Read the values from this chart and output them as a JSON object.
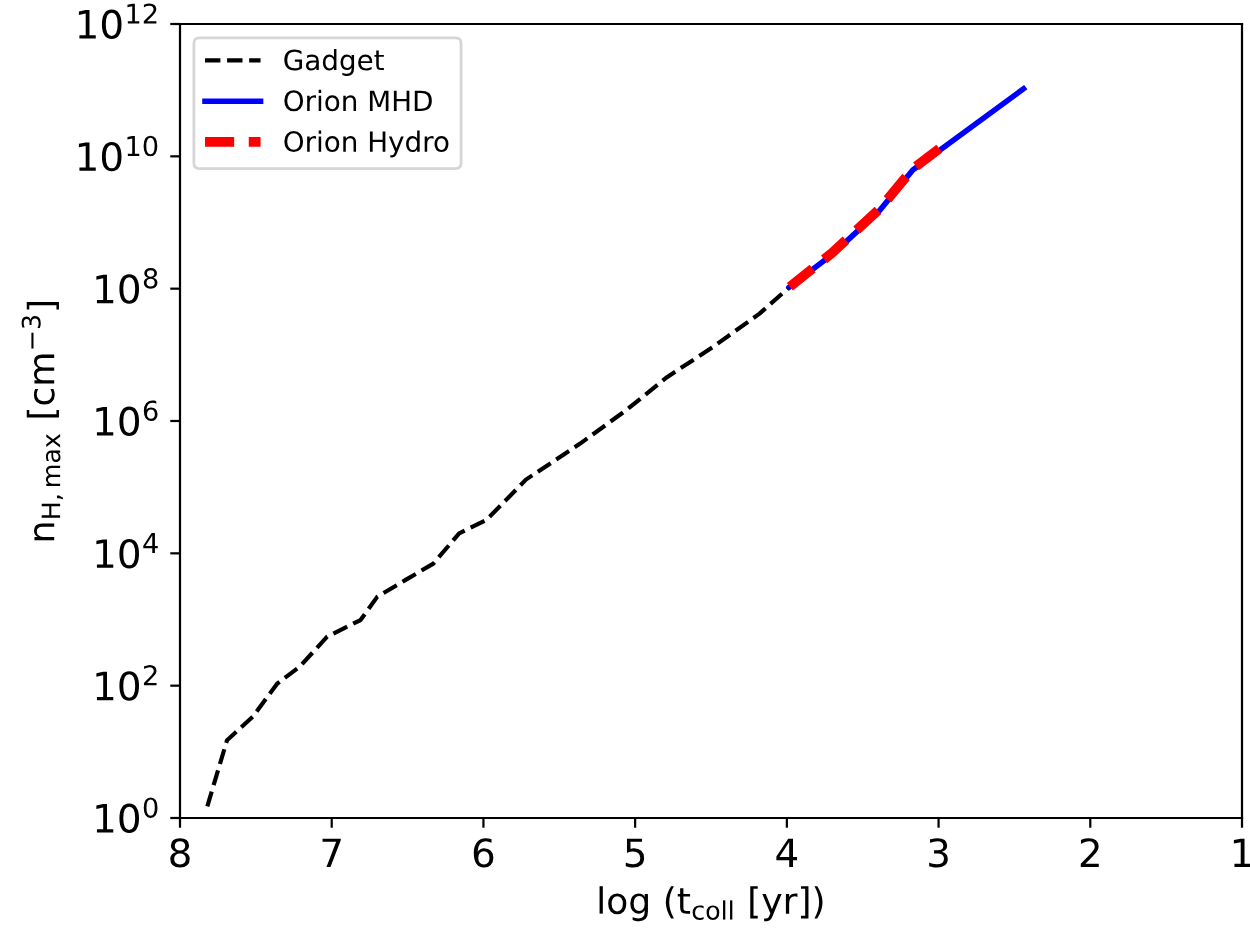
{
  "chart_data": {
    "type": "line",
    "xlabel": "log (t$_{coll}$ [yr])",
    "ylabel": "n$_{H,max}$ [cm$^{−3}$]",
    "log": "y",
    "xlim": [
      8,
      1
    ],
    "xticks": [
      8,
      7,
      6,
      5,
      4,
      3,
      2,
      1
    ],
    "ylim": [
      1,
      1000000000000.0
    ],
    "yticks": [
      {
        "value": 1,
        "label": "10$^{0}$"
      },
      {
        "value": 100,
        "label": "10$^{2}$"
      },
      {
        "value": 10000,
        "label": "10$^{4}$"
      },
      {
        "value": 1000000,
        "label": "10$^{6}$"
      },
      {
        "value": 100000000,
        "label": "10$^{8}$"
      },
      {
        "value": 10000000000,
        "label": "10$^{10}$"
      },
      {
        "value": 1000000000000,
        "label": "10$^{12}$"
      }
    ],
    "grid": false,
    "legend": "top left",
    "series": [
      {
        "name": "Gadget",
        "color": "#000000",
        "line_style": "dashed",
        "x": [
          7.82,
          7.69,
          7.52,
          7.36,
          7.21,
          7.03,
          6.81,
          6.7,
          6.51,
          6.33,
          6.16,
          5.98,
          5.72,
          5.36,
          5.06,
          4.79,
          4.49,
          4.18,
          3.98
        ],
        "values": [
          1.5,
          15,
          34,
          107,
          195,
          550,
          980,
          2200,
          4000,
          7000,
          20000,
          32000,
          130000,
          460000,
          1450000,
          4600000,
          13000000,
          42000000,
          107000000
        ]
      },
      {
        "name": "Orion MHD",
        "color": "#0000ff",
        "line_style": "solid",
        "x": [
          3.98,
          3.7,
          3.39,
          3.17,
          2.44
        ],
        "values": [
          107000000,
          330000000,
          1500000000,
          6200000000,
          105000000000
        ]
      },
      {
        "name": "Orion Hydro",
        "color": "#ff0000",
        "line_style": "dashed",
        "x": [
          3.98,
          3.7,
          3.39,
          3.17,
          2.96
        ],
        "values": [
          107000000,
          350000000,
          1600000000,
          6500000000,
          15000000000
        ]
      }
    ]
  }
}
